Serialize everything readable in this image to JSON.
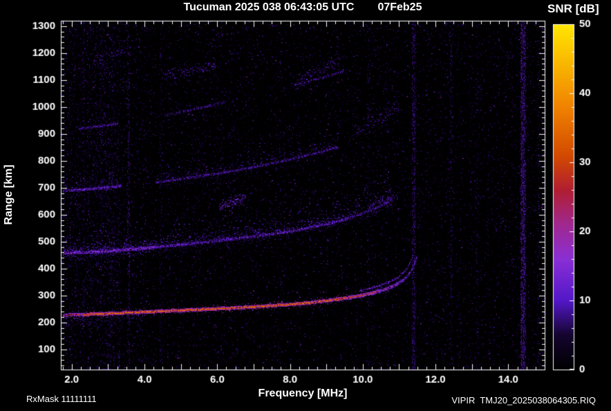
{
  "footer": {
    "rxmask": "RxMask 11111111",
    "file": "VIPIR  TMJ20_2025038064305.RIQ"
  },
  "chart_data": {
    "type": "heatmap",
    "title": "Tucuman 2025 038 06:43:05 UTC",
    "date_label": "07Feb25",
    "xlabel": "Frequency [MHz]",
    "ylabel": "Range [km]",
    "xlim": [
      1.7,
      15.0
    ],
    "ylim": [
      25,
      1320
    ],
    "x_major_step": 1.0,
    "x_minor_step": 0.25,
    "y_major_step": 100,
    "y_minor_step": 20,
    "x_ticks": [
      {
        "v": 2,
        "t": "2.0"
      },
      {
        "v": 4,
        "t": "4.0"
      },
      {
        "v": 6,
        "t": "6.0"
      },
      {
        "v": 8,
        "t": "8.0"
      },
      {
        "v": 10,
        "t": "10.0"
      },
      {
        "v": 12,
        "t": "12.0"
      },
      {
        "v": 14,
        "t": "14.0"
      }
    ],
    "y_ticks": [
      {
        "v": 100,
        "t": "100"
      },
      {
        "v": 200,
        "t": "200"
      },
      {
        "v": 300,
        "t": "300"
      },
      {
        "v": 400,
        "t": "400"
      },
      {
        "v": 500,
        "t": "500"
      },
      {
        "v": 600,
        "t": "600"
      },
      {
        "v": 700,
        "t": "700"
      },
      {
        "v": 800,
        "t": "800"
      },
      {
        "v": 900,
        "t": "900"
      },
      {
        "v": 1000,
        "t": "1000"
      },
      {
        "v": 1100,
        "t": "1100"
      },
      {
        "v": 1200,
        "t": "1200"
      },
      {
        "v": 1300,
        "t": "1300"
      }
    ],
    "colorbar": {
      "label": "SNR [dB]",
      "min": 0,
      "max": 50,
      "major_step": 10,
      "minor_step": 2,
      "ticks": [
        {
          "v": 0,
          "t": "0"
        },
        {
          "v": 10,
          "t": "10"
        },
        {
          "v": 20,
          "t": "20"
        },
        {
          "v": 30,
          "t": "30"
        },
        {
          "v": 40,
          "t": "40"
        },
        {
          "v": 50,
          "t": "50"
        }
      ],
      "stops": [
        {
          "t": 0.0,
          "c": "#000000"
        },
        {
          "t": 0.1,
          "c": "#14042e"
        },
        {
          "t": 0.2,
          "c": "#5317c8"
        },
        {
          "t": 0.32,
          "c": "#8a2fd4"
        },
        {
          "t": 0.42,
          "c": "#a02890"
        },
        {
          "t": 0.52,
          "c": "#b01e32"
        },
        {
          "t": 0.62,
          "c": "#d24a00"
        },
        {
          "t": 0.76,
          "c": "#f08200"
        },
        {
          "t": 0.88,
          "c": "#f8b400"
        },
        {
          "t": 1.0,
          "c": "#ffe600"
        }
      ]
    },
    "noise": {
      "base_density": 0.05,
      "bands": [
        {
          "f0": 1.7,
          "f1": 3.35,
          "density": 0.13
        },
        {
          "f0": 3.35,
          "f1": 4.05,
          "density": 0.06
        },
        {
          "f0": 5.85,
          "f1": 6.45,
          "density": 0.065
        },
        {
          "f0": 7.0,
          "f1": 7.3,
          "density": 0.045
        },
        {
          "f0": 8.85,
          "f1": 9.45,
          "density": 0.05
        }
      ]
    },
    "rfi_stripes": [
      {
        "f": 3.55,
        "w": 0.06,
        "density": 0.16,
        "snr": 10
      },
      {
        "f": 4.45,
        "w": 0.05,
        "density": 0.09,
        "snr": 8
      },
      {
        "f": 10.15,
        "w": 0.05,
        "density": 0.09,
        "snr": 8
      },
      {
        "f": 11.39,
        "w": 0.07,
        "density": 0.28,
        "snr": 10
      },
      {
        "f": 12.42,
        "w": 0.05,
        "density": 0.13,
        "snr": 9
      },
      {
        "f": 13.13,
        "w": 0.05,
        "density": 0.11,
        "snr": 8
      },
      {
        "f": 14.4,
        "w": 0.13,
        "density": 0.5,
        "snr": 12
      },
      {
        "f": 14.82,
        "w": 0.06,
        "density": 0.12,
        "snr": 8
      }
    ],
    "traces": [
      {
        "name": "F-echo 1st hop O-mode",
        "thickness": 2,
        "fuzz": 2.5,
        "fuzzdots": 2,
        "points": [
          [
            1.75,
            228
          ],
          [
            2.2,
            230
          ],
          [
            3.0,
            234
          ],
          [
            4.0,
            240
          ],
          [
            5.0,
            246
          ],
          [
            6.0,
            252
          ],
          [
            7.0,
            259
          ],
          [
            8.0,
            268
          ],
          [
            8.5,
            274
          ],
          [
            9.0,
            282
          ],
          [
            9.5,
            291
          ],
          [
            10.0,
            302
          ],
          [
            10.3,
            312
          ],
          [
            10.6,
            324
          ],
          [
            10.9,
            341
          ],
          [
            11.1,
            358
          ],
          [
            11.25,
            378
          ],
          [
            11.35,
            400
          ],
          [
            11.43,
            425
          ],
          [
            11.48,
            445
          ]
        ],
        "segments": [
          {
            "f0": 1.75,
            "f1": 2.3,
            "snr": 30,
            "density": 0.85
          },
          {
            "f0": 2.3,
            "f1": 9.5,
            "snr": 38,
            "density": 1.0
          },
          {
            "f0": 9.5,
            "f1": 10.4,
            "snr": 31,
            "density": 1.0
          },
          {
            "f0": 10.4,
            "f1": 11.0,
            "snr": 22,
            "density": 0.9
          },
          {
            "f0": 11.0,
            "f1": 11.48,
            "snr": 16,
            "density": 0.85
          }
        ]
      },
      {
        "name": "F-echo 1st hop X-mode",
        "thickness": 1,
        "fuzz": 2,
        "fuzzdots": 1,
        "points": [
          [
            9.9,
            318
          ],
          [
            10.2,
            328
          ],
          [
            10.5,
            340
          ],
          [
            10.8,
            356
          ],
          [
            11.0,
            372
          ],
          [
            11.15,
            392
          ],
          [
            11.25,
            412
          ],
          [
            11.33,
            435
          ],
          [
            11.38,
            455
          ]
        ],
        "segments": [
          {
            "f0": 9.9,
            "f1": 11.38,
            "snr": 15,
            "density": 0.8
          }
        ]
      },
      {
        "name": "F-echo 2nd hop",
        "thickness": 2,
        "fuzz": 5,
        "fuzzdots": 4,
        "points": [
          [
            1.75,
            458
          ],
          [
            2.5,
            462
          ],
          [
            3.0,
            466
          ],
          [
            4.0,
            477
          ],
          [
            5.0,
            490
          ],
          [
            6.0,
            504
          ],
          [
            7.0,
            520
          ],
          [
            8.0,
            540
          ],
          [
            8.5,
            552
          ],
          [
            9.0,
            566
          ],
          [
            9.5,
            584
          ],
          [
            10.0,
            606
          ],
          [
            10.3,
            622
          ],
          [
            10.6,
            642
          ],
          [
            10.8,
            660
          ]
        ],
        "segments": [
          {
            "f0": 1.75,
            "f1": 4.3,
            "snr": 18,
            "density": 0.9
          },
          {
            "f0": 4.3,
            "f1": 9.6,
            "snr": 14,
            "density": 0.75
          },
          {
            "f0": 9.6,
            "f1": 10.8,
            "snr": 12,
            "density": 0.6
          }
        ],
        "spread": {
          "p": 0.75,
          "h": 115,
          "snr": 9
        }
      },
      {
        "name": "F-echo 3rd hop",
        "thickness": 2,
        "fuzz": 6,
        "fuzzdots": 3,
        "points": [
          [
            1.75,
            690
          ],
          [
            2.5,
            697
          ],
          [
            3.0,
            702
          ],
          [
            4.0,
            716
          ],
          [
            5.0,
            734
          ],
          [
            6.0,
            754
          ],
          [
            7.0,
            778
          ],
          [
            8.0,
            806
          ],
          [
            8.6,
            826
          ],
          [
            9.3,
            852
          ]
        ],
        "segments": [
          {
            "f0": 1.75,
            "f1": 3.35,
            "snr": 14,
            "density": 0.8
          },
          {
            "f0": 4.3,
            "f1": 9.3,
            "snr": 11,
            "density": 0.6
          }
        ],
        "spread": {
          "p": 0.4,
          "h": 80,
          "snr": 8
        }
      },
      {
        "name": "F-echo 4th hop",
        "thickness": 2,
        "fuzz": 7,
        "fuzzdots": 2,
        "points": [
          [
            2.2,
            920
          ],
          [
            3.0,
            934
          ],
          [
            4.0,
            956
          ],
          [
            5.0,
            982
          ],
          [
            6.0,
            1012
          ],
          [
            7.0,
            1044
          ],
          [
            8.0,
            1078
          ],
          [
            9.0,
            1114
          ],
          [
            9.5,
            1134
          ]
        ],
        "segments": [
          {
            "f0": 2.2,
            "f1": 3.25,
            "snr": 11,
            "density": 0.55
          },
          {
            "f0": 4.55,
            "f1": 6.25,
            "snr": 10,
            "density": 0.5
          },
          {
            "f0": 8.1,
            "f1": 9.45,
            "snr": 10,
            "density": 0.5
          }
        ]
      }
    ],
    "patches": [
      {
        "f0": 9.7,
        "f1": 11.0,
        "r0": 905,
        "r1": 1005,
        "h": 45,
        "snr": 9,
        "d": 0.5
      },
      {
        "f0": 4.5,
        "f1": 5.95,
        "r0": 1118,
        "r1": 1152,
        "h": 28,
        "snr": 9,
        "d": 0.6
      },
      {
        "f0": 8.2,
        "f1": 9.35,
        "r0": 1092,
        "r1": 1172,
        "h": 36,
        "snr": 9,
        "d": 0.6
      },
      {
        "f0": 10.1,
        "f1": 10.95,
        "r0": 612,
        "r1": 668,
        "h": 46,
        "snr": 10,
        "d": 0.5
      },
      {
        "f0": 6.05,
        "f1": 6.75,
        "r0": 634,
        "r1": 662,
        "h": 30,
        "snr": 12,
        "d": 0.8
      },
      {
        "f0": 1.75,
        "f1": 4.0,
        "r0": 200,
        "r1": 222,
        "h": 30,
        "snr": 7,
        "d": 0.5
      },
      {
        "f0": 2.6,
        "f1": 3.6,
        "r0": 1185,
        "r1": 1210,
        "h": 35,
        "snr": 8,
        "d": 0.35
      }
    ]
  }
}
